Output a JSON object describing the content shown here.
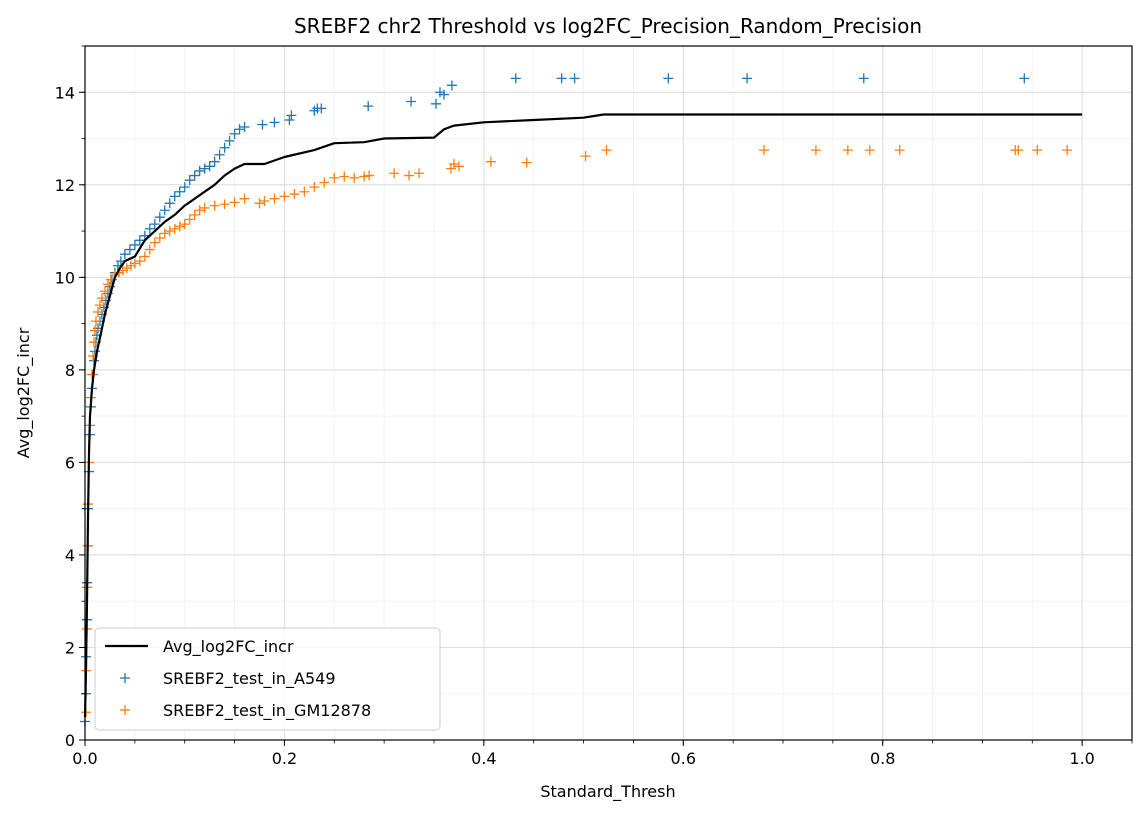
{
  "chart_data": {
    "type": "scatter",
    "title": "SREBF2 chr2 Threshold vs log2FC_Precision_Random_Precision",
    "xlabel": "Standard_Thresh",
    "ylabel": "Avg_log2FC_incr",
    "xlim": [
      0.0,
      1.05
    ],
    "ylim": [
      0,
      15
    ],
    "xticks": [
      "0.0",
      "0.2",
      "0.4",
      "0.6",
      "0.8",
      "1.0"
    ],
    "yticks": [
      "0",
      "2",
      "4",
      "6",
      "8",
      "10",
      "12",
      "14"
    ],
    "grid": "major and minor",
    "legend_position": "lower-left",
    "colors": {
      "line": "#000000",
      "a549": "#1f77b4",
      "gm12878": "#ff7f0e",
      "grid": "#dddddd"
    },
    "line_series": {
      "name": "Avg_log2FC_incr",
      "points": [
        [
          0.0,
          0.5
        ],
        [
          0.001,
          1.5
        ],
        [
          0.002,
          3.0
        ],
        [
          0.003,
          4.8
        ],
        [
          0.004,
          6.2
        ],
        [
          0.005,
          7.0
        ],
        [
          0.007,
          7.6
        ],
        [
          0.009,
          8.0
        ],
        [
          0.012,
          8.4
        ],
        [
          0.016,
          8.8
        ],
        [
          0.02,
          9.2
        ],
        [
          0.025,
          9.6
        ],
        [
          0.03,
          10.0
        ],
        [
          0.035,
          10.2
        ],
        [
          0.04,
          10.35
        ],
        [
          0.05,
          10.45
        ],
        [
          0.06,
          10.8
        ],
        [
          0.07,
          11.0
        ],
        [
          0.08,
          11.2
        ],
        [
          0.09,
          11.35
        ],
        [
          0.1,
          11.55
        ],
        [
          0.11,
          11.7
        ],
        [
          0.12,
          11.85
        ],
        [
          0.13,
          12.0
        ],
        [
          0.14,
          12.2
        ],
        [
          0.15,
          12.35
        ],
        [
          0.16,
          12.45
        ],
        [
          0.18,
          12.45
        ],
        [
          0.2,
          12.6
        ],
        [
          0.23,
          12.75
        ],
        [
          0.25,
          12.9
        ],
        [
          0.28,
          12.92
        ],
        [
          0.3,
          13.0
        ],
        [
          0.35,
          13.02
        ],
        [
          0.36,
          13.2
        ],
        [
          0.37,
          13.28
        ],
        [
          0.4,
          13.35
        ],
        [
          0.45,
          13.4
        ],
        [
          0.5,
          13.45
        ],
        [
          0.52,
          13.52
        ],
        [
          0.6,
          13.52
        ],
        [
          0.8,
          13.52
        ],
        [
          1.0,
          13.52
        ]
      ]
    },
    "series": [
      {
        "name": "SREBF2_test_in_A549",
        "marker": "+",
        "points": [
          [
            0.0,
            0.4
          ],
          [
            0.001,
            1.0
          ],
          [
            0.001,
            1.8
          ],
          [
            0.002,
            2.6
          ],
          [
            0.002,
            3.4
          ],
          [
            0.003,
            4.2
          ],
          [
            0.003,
            5.0
          ],
          [
            0.004,
            5.8
          ],
          [
            0.005,
            6.6
          ],
          [
            0.006,
            7.2
          ],
          [
            0.007,
            7.6
          ],
          [
            0.008,
            7.9
          ],
          [
            0.009,
            8.2
          ],
          [
            0.01,
            8.4
          ],
          [
            0.011,
            8.6
          ],
          [
            0.012,
            8.75
          ],
          [
            0.013,
            8.9
          ],
          [
            0.015,
            9.05
          ],
          [
            0.017,
            9.2
          ],
          [
            0.019,
            9.35
          ],
          [
            0.021,
            9.5
          ],
          [
            0.023,
            9.65
          ],
          [
            0.025,
            9.8
          ],
          [
            0.027,
            9.95
          ],
          [
            0.03,
            10.1
          ],
          [
            0.033,
            10.25
          ],
          [
            0.036,
            10.35
          ],
          [
            0.04,
            10.5
          ],
          [
            0.045,
            10.6
          ],
          [
            0.05,
            10.7
          ],
          [
            0.055,
            10.8
          ],
          [
            0.06,
            10.9
          ],
          [
            0.065,
            11.05
          ],
          [
            0.07,
            11.15
          ],
          [
            0.075,
            11.3
          ],
          [
            0.08,
            11.45
          ],
          [
            0.085,
            11.6
          ],
          [
            0.09,
            11.75
          ],
          [
            0.095,
            11.85
          ],
          [
            0.1,
            11.95
          ],
          [
            0.105,
            12.1
          ],
          [
            0.11,
            12.2
          ],
          [
            0.115,
            12.3
          ],
          [
            0.12,
            12.35
          ],
          [
            0.125,
            12.4
          ],
          [
            0.13,
            12.5
          ],
          [
            0.135,
            12.65
          ],
          [
            0.14,
            12.8
          ],
          [
            0.145,
            12.95
          ],
          [
            0.15,
            13.1
          ],
          [
            0.155,
            13.2
          ],
          [
            0.16,
            13.25
          ],
          [
            0.178,
            13.3
          ],
          [
            0.19,
            13.35
          ],
          [
            0.205,
            13.4
          ],
          [
            0.207,
            13.5
          ],
          [
            0.23,
            13.6
          ],
          [
            0.233,
            13.65
          ],
          [
            0.237,
            13.65
          ],
          [
            0.284,
            13.7
          ],
          [
            0.327,
            13.8
          ],
          [
            0.352,
            13.75
          ],
          [
            0.356,
            14.0
          ],
          [
            0.36,
            13.95
          ],
          [
            0.368,
            14.15
          ],
          [
            0.432,
            14.3
          ],
          [
            0.478,
            14.3
          ],
          [
            0.491,
            14.3
          ],
          [
            0.585,
            14.3
          ],
          [
            0.664,
            14.3
          ],
          [
            0.781,
            14.3
          ],
          [
            0.942,
            14.3
          ]
        ]
      },
      {
        "name": "SREBF2_test_in_GM12878",
        "marker": "+",
        "points": [
          [
            0.001,
            0.6
          ],
          [
            0.001,
            1.5
          ],
          [
            0.002,
            2.4
          ],
          [
            0.002,
            3.3
          ],
          [
            0.003,
            4.2
          ],
          [
            0.003,
            5.1
          ],
          [
            0.004,
            6.0
          ],
          [
            0.005,
            6.8
          ],
          [
            0.006,
            7.4
          ],
          [
            0.007,
            7.9
          ],
          [
            0.008,
            8.3
          ],
          [
            0.009,
            8.6
          ],
          [
            0.01,
            8.85
          ],
          [
            0.011,
            9.05
          ],
          [
            0.013,
            9.25
          ],
          [
            0.015,
            9.4
          ],
          [
            0.017,
            9.55
          ],
          [
            0.02,
            9.7
          ],
          [
            0.023,
            9.85
          ],
          [
            0.026,
            9.95
          ],
          [
            0.03,
            10.05
          ],
          [
            0.034,
            10.1
          ],
          [
            0.038,
            10.15
          ],
          [
            0.042,
            10.2
          ],
          [
            0.046,
            10.25
          ],
          [
            0.05,
            10.3
          ],
          [
            0.055,
            10.35
          ],
          [
            0.06,
            10.45
          ],
          [
            0.065,
            10.6
          ],
          [
            0.07,
            10.75
          ],
          [
            0.075,
            10.85
          ],
          [
            0.08,
            10.95
          ],
          [
            0.085,
            11.0
          ],
          [
            0.09,
            11.05
          ],
          [
            0.095,
            11.1
          ],
          [
            0.1,
            11.15
          ],
          [
            0.105,
            11.25
          ],
          [
            0.11,
            11.35
          ],
          [
            0.115,
            11.45
          ],
          [
            0.12,
            11.5
          ],
          [
            0.13,
            11.55
          ],
          [
            0.14,
            11.58
          ],
          [
            0.15,
            11.62
          ],
          [
            0.16,
            11.7
          ],
          [
            0.175,
            11.6
          ],
          [
            0.18,
            11.65
          ],
          [
            0.19,
            11.7
          ],
          [
            0.2,
            11.75
          ],
          [
            0.21,
            11.8
          ],
          [
            0.22,
            11.85
          ],
          [
            0.23,
            11.95
          ],
          [
            0.24,
            12.05
          ],
          [
            0.25,
            12.15
          ],
          [
            0.26,
            12.18
          ],
          [
            0.27,
            12.15
          ],
          [
            0.28,
            12.18
          ],
          [
            0.285,
            12.2
          ],
          [
            0.31,
            12.25
          ],
          [
            0.325,
            12.2
          ],
          [
            0.335,
            12.25
          ],
          [
            0.367,
            12.35
          ],
          [
            0.37,
            12.45
          ],
          [
            0.375,
            12.4
          ],
          [
            0.407,
            12.5
          ],
          [
            0.443,
            12.48
          ],
          [
            0.502,
            12.62
          ],
          [
            0.523,
            12.75
          ],
          [
            0.681,
            12.75
          ],
          [
            0.733,
            12.75
          ],
          [
            0.765,
            12.75
          ],
          [
            0.787,
            12.75
          ],
          [
            0.817,
            12.75
          ],
          [
            0.933,
            12.75
          ],
          [
            0.936,
            12.75
          ],
          [
            0.955,
            12.75
          ],
          [
            0.985,
            12.75
          ]
        ]
      }
    ]
  }
}
